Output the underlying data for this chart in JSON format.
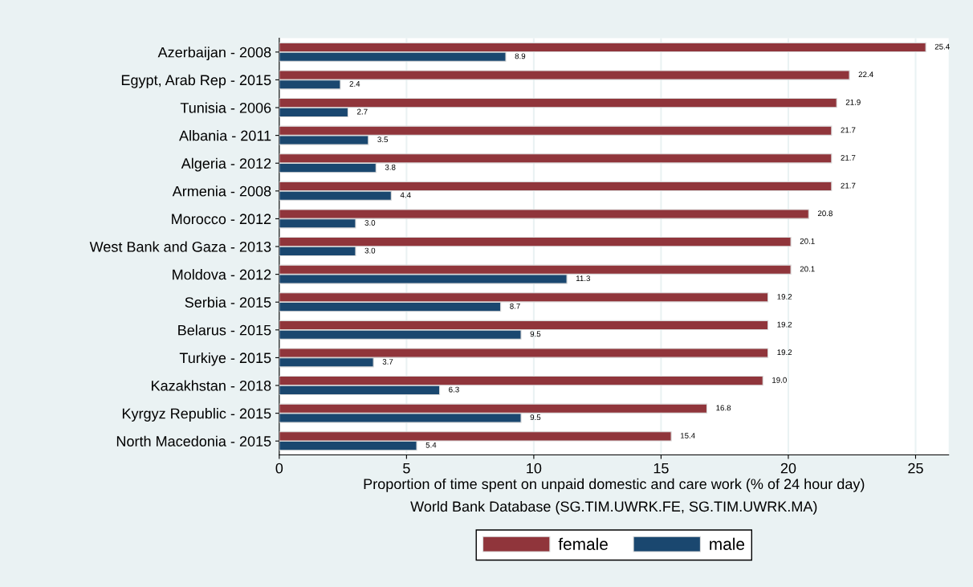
{
  "chart_data": {
    "type": "bar",
    "orientation": "horizontal",
    "categories": [
      "Azerbaijan - 2008",
      "Egypt, Arab Rep - 2015",
      "Tunisia - 2006",
      "Albania - 2011",
      "Algeria - 2012",
      "Armenia - 2008",
      "Morocco - 2012",
      "West Bank and Gaza - 2013",
      "Moldova - 2012",
      "Serbia - 2015",
      "Belarus - 2015",
      "Turkiye - 2015",
      "Kazakhstan - 2018",
      "Kyrgyz Republic - 2015",
      "North Macedonia - 2015"
    ],
    "series": [
      {
        "name": "female",
        "color": "#90353b",
        "values": [
          25.4,
          22.4,
          21.9,
          21.7,
          21.7,
          21.7,
          20.8,
          20.1,
          20.1,
          19.2,
          19.2,
          19.2,
          19.0,
          16.8,
          15.4
        ],
        "value_labels": [
          "25.4",
          "22.4",
          "21.9",
          "21.7",
          "21.7",
          "21.7",
          "20.8",
          "20.1",
          "20.1",
          "19.2",
          "19.2",
          "19.2",
          "19.0",
          "16.8",
          "15.4"
        ]
      },
      {
        "name": "male",
        "color": "#1a476f",
        "values": [
          8.9,
          2.4,
          2.7,
          3.5,
          3.8,
          4.4,
          3.0,
          3.0,
          11.3,
          8.7,
          9.5,
          3.7,
          6.3,
          9.5,
          5.4
        ],
        "value_labels": [
          "8.9",
          "2.4",
          "2.7",
          "3.5",
          "3.8",
          "4.4",
          "3.0",
          "3.0",
          "11.3",
          "8.7",
          "9.5",
          "3.7",
          "6.3",
          "9.5",
          "5.4"
        ]
      }
    ],
    "xlim": [
      0,
      26.3
    ],
    "xticks": [
      0,
      5,
      10,
      15,
      20,
      25
    ],
    "xlabel": "Proportion of time spent on unpaid domestic and care work (% of 24 hour day)",
    "annotations": [
      "World Bank Database (SG.TIM.UWRK.FE, SG.TIM.UWRK.MA)"
    ],
    "grid": "x",
    "legend": "bottom"
  }
}
